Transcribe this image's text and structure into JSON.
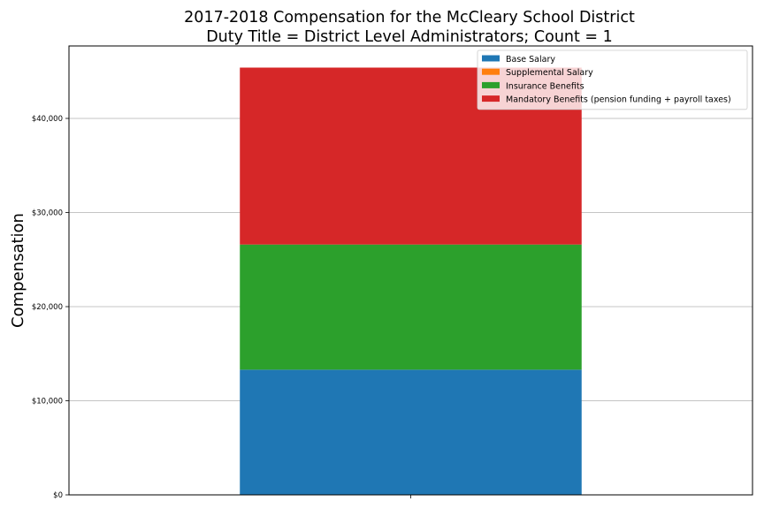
{
  "chart_data": {
    "type": "bar",
    "title": "2017-2018 Compensation for the McCleary School District",
    "subtitle": "Duty Title = District Level Administrators; Count = 1",
    "xlabel": "",
    "ylabel": "Compensation",
    "categories": [
      ""
    ],
    "stacked": true,
    "ylim": [
      0,
      47700
    ],
    "yticks": [
      0,
      10000,
      20000,
      30000,
      40000
    ],
    "ytick_labels": [
      "$0",
      "$10,000",
      "$20,000",
      "$30,000",
      "$40,000"
    ],
    "grid": true,
    "legend_position": "top-right",
    "series": [
      {
        "name": "Base Salary",
        "color": "#1f77b4",
        "values": [
          13300
        ]
      },
      {
        "name": "Supplemental Salary",
        "color": "#ff7f0e",
        "values": [
          0
        ]
      },
      {
        "name": "Insurance Benefits",
        "color": "#2ca02c",
        "values": [
          13300
        ]
      },
      {
        "name": "Mandatory Benefits (pension funding + payroll taxes)",
        "color": "#d62728",
        "values": [
          18800
        ]
      }
    ]
  }
}
